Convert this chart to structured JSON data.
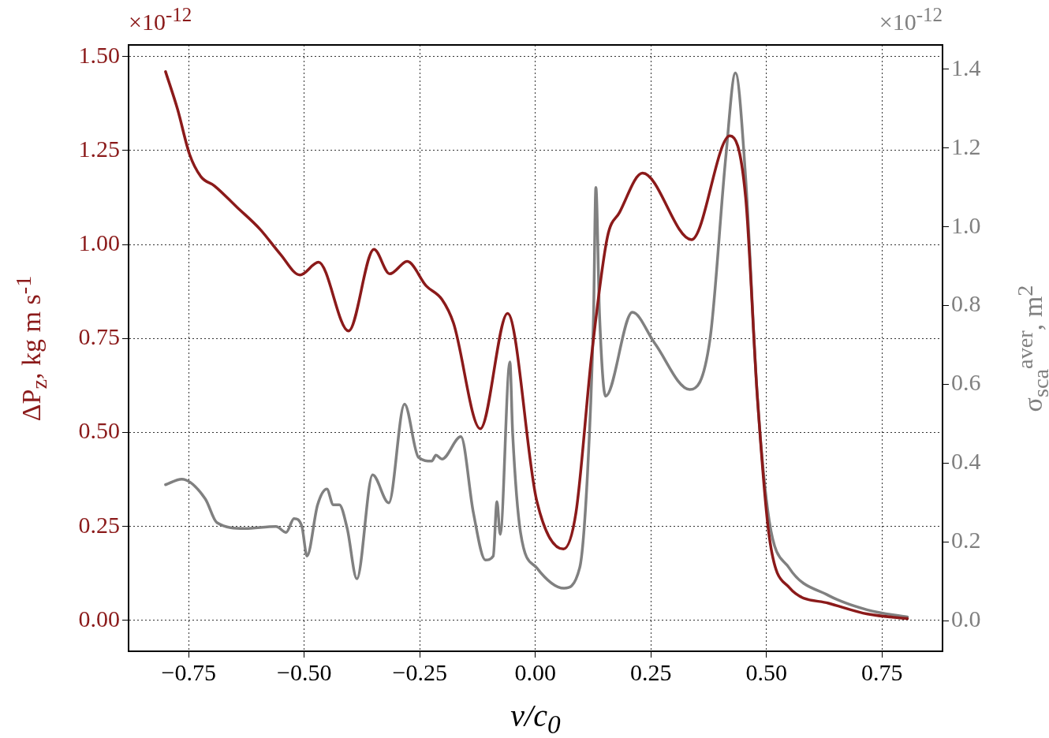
{
  "chart_data": {
    "type": "line",
    "xlabel": "v/c$_{0}$",
    "ylabel": "ΔP$_{z}$, kg m s$^{-1}$",
    "y2label": "σ$_{sca}$$^{aver}$, m$^{2}$",
    "annotations": [
      "×10$^{-12}$",
      "×10$^{-12}$"
    ],
    "xlim": [
      -0.88,
      0.881
    ],
    "xticks": [
      {
        "value": -0.75,
        "label": "−0.75"
      },
      {
        "value": -0.5,
        "label": "−0.50"
      },
      {
        "value": -0.25,
        "label": "−0.25"
      },
      {
        "value": 0,
        "label": "0.00"
      },
      {
        "value": 0.25,
        "label": "0.25"
      },
      {
        "value": 0.5,
        "label": "0.50"
      },
      {
        "value": 0.75,
        "label": "0.75"
      }
    ],
    "ylim": [
      -0.082,
      1.531
    ],
    "yticks": [
      {
        "value": 0,
        "label": "0.00"
      },
      {
        "value": 0.25,
        "label": "0.25"
      },
      {
        "value": 0.5,
        "label": "0.50"
      },
      {
        "value": 0.75,
        "label": "0.75"
      },
      {
        "value": 1,
        "label": "1.00"
      },
      {
        "value": 1.25,
        "label": "1.25"
      },
      {
        "value": 1.5,
        "label": "1.50"
      }
    ],
    "y2lim": [
      -0.078,
      1.462
    ],
    "y2ticks": [
      {
        "value": 0,
        "label": "0.0"
      },
      {
        "value": 0.2,
        "label": "0.2"
      },
      {
        "value": 0.4,
        "label": "0.4"
      },
      {
        "value": 0.6,
        "label": "0.6"
      },
      {
        "value": 0.8,
        "label": "0.8"
      },
      {
        "value": 1,
        "label": "1.0"
      },
      {
        "value": 1.2,
        "label": "1.2"
      },
      {
        "value": 1.4,
        "label": "1.4"
      }
    ],
    "grid": true,
    "legend": false,
    "marker": "none",
    "line_style": "solid",
    "series": [
      {
        "color": "#8b1a1a",
        "x": [
          -0.8,
          -0.774,
          -0.748,
          -0.723,
          -0.694,
          -0.646,
          -0.595,
          -0.552,
          -0.509,
          -0.469,
          -0.404,
          -0.349,
          -0.315,
          -0.277,
          -0.236,
          -0.202,
          -0.177,
          -0.119,
          -0.06,
          0.003,
          0.061,
          0.088,
          0.122,
          0.156,
          0.182,
          0.232,
          0.338,
          0.421,
          0.455,
          0.48,
          0.506,
          0.549,
          0.634,
          0.719,
          0.805
        ],
        "values": [
          1.46,
          1.36,
          1.24,
          1.18,
          1.156,
          1.1,
          1.04,
          0.975,
          0.919,
          0.953,
          0.77,
          0.987,
          0.922,
          0.955,
          0.89,
          0.854,
          0.791,
          0.51,
          0.817,
          0.319,
          0.19,
          0.287,
          0.707,
          1.02,
          1.085,
          1.19,
          1.013,
          1.289,
          1.126,
          0.602,
          0.224,
          0.088,
          0.046,
          0.017,
          0.005
        ]
      },
      {
        "color": "#808080",
        "axis": "y2",
        "x": [
          -0.8,
          -0.765,
          -0.714,
          -0.689,
          -0.629,
          -0.561,
          -0.539,
          -0.522,
          -0.505,
          -0.494,
          -0.471,
          -0.451,
          -0.437,
          -0.424,
          -0.407,
          -0.386,
          -0.352,
          -0.317,
          -0.283,
          -0.253,
          -0.224,
          -0.215,
          -0.202,
          -0.161,
          -0.134,
          -0.108,
          -0.091,
          -0.083,
          -0.076,
          -0.055,
          -0.049,
          -0.032,
          0.003,
          0.062,
          0.096,
          0.113,
          0.126,
          0.131,
          0.139,
          0.152,
          0.21,
          0.258,
          0.334,
          0.378,
          0.412,
          0.433,
          0.455,
          0.48,
          0.506,
          0.549,
          0.634,
          0.719,
          0.805
        ],
        "values": [
          0.345,
          0.359,
          0.309,
          0.249,
          0.234,
          0.239,
          0.224,
          0.259,
          0.239,
          0.164,
          0.294,
          0.334,
          0.294,
          0.294,
          0.234,
          0.106,
          0.37,
          0.299,
          0.55,
          0.415,
          0.405,
          0.42,
          0.41,
          0.467,
          0.274,
          0.154,
          0.164,
          0.302,
          0.219,
          0.657,
          0.475,
          0.224,
          0.134,
          0.082,
          0.134,
          0.375,
          0.775,
          1.1,
          0.775,
          0.57,
          0.783,
          0.705,
          0.587,
          0.715,
          1.176,
          1.391,
          1.125,
          0.575,
          0.254,
          0.134,
          0.064,
          0.027,
          0.009
        ]
      }
    ]
  }
}
